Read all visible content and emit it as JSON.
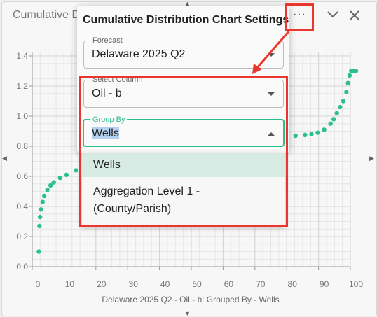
{
  "window": {
    "title": "Cumulative Distribution"
  },
  "popup": {
    "title": "Cumulative Distribution Chart Settings",
    "forecast": {
      "label": "Forecast",
      "value": "Delaware 2025 Q2"
    },
    "select_column": {
      "label": "Select Column",
      "value": "Oil - b"
    },
    "group_by": {
      "label": "Group By",
      "value": "Wells"
    },
    "dropdown_options": [
      "Wells",
      "Aggregation Level 1 -",
      "(County/Parish)"
    ]
  },
  "colors": {
    "accent": "#2ebf91",
    "highlight": "#e8372c",
    "series": "#2ebf91"
  },
  "chart_data": {
    "type": "scatter",
    "title": "",
    "xlabel": "Delaware 2025 Q2 - Oil - b: Grouped By - Wells",
    "ylabel": "",
    "xlim": [
      0,
      100
    ],
    "ylim": [
      0,
      1.4
    ],
    "xticks": [
      "0",
      "10",
      "20",
      "30",
      "40",
      "50",
      "60",
      "70",
      "80",
      "90",
      "100"
    ],
    "yticks": [
      "0.0",
      "0.2",
      "0.4",
      "0.6",
      "0.8",
      "1.0",
      "1.2",
      "1.4"
    ],
    "grid": true,
    "points": [
      [
        0.3,
        0.1
      ],
      [
        0.5,
        0.27
      ],
      [
        0.7,
        0.33
      ],
      [
        1,
        0.38
      ],
      [
        1.5,
        0.43
      ],
      [
        2,
        0.47
      ],
      [
        3,
        0.51
      ],
      [
        4,
        0.54
      ],
      [
        5,
        0.56
      ],
      [
        7,
        0.59
      ],
      [
        9,
        0.61
      ],
      [
        12,
        0.64
      ],
      [
        15,
        0.66
      ],
      [
        18,
        0.68
      ],
      [
        21,
        0.7
      ],
      [
        24,
        0.71
      ],
      [
        27,
        0.72
      ],
      [
        30,
        0.73
      ],
      [
        33,
        0.74
      ],
      [
        36,
        0.75
      ],
      [
        39,
        0.76
      ],
      [
        42,
        0.77
      ],
      [
        45,
        0.78
      ],
      [
        48,
        0.785
      ],
      [
        51,
        0.79
      ],
      [
        54,
        0.8
      ],
      [
        57,
        0.805
      ],
      [
        60,
        0.81
      ],
      [
        63,
        0.82
      ],
      [
        66,
        0.83
      ],
      [
        69,
        0.84
      ],
      [
        72,
        0.845
      ],
      [
        75,
        0.85
      ],
      [
        78,
        0.86
      ],
      [
        81,
        0.87
      ],
      [
        84,
        0.875
      ],
      [
        86,
        0.88
      ],
      [
        88,
        0.89
      ],
      [
        90,
        0.91
      ],
      [
        92,
        0.95
      ],
      [
        93,
        0.98
      ],
      [
        94,
        1.02
      ],
      [
        95,
        1.06
      ],
      [
        96,
        1.1
      ],
      [
        97,
        1.16
      ],
      [
        97.5,
        1.22
      ],
      [
        98,
        1.27
      ],
      [
        98.5,
        1.3
      ],
      [
        99,
        1.3
      ],
      [
        99.5,
        1.3
      ],
      [
        100,
        1.3
      ]
    ]
  }
}
